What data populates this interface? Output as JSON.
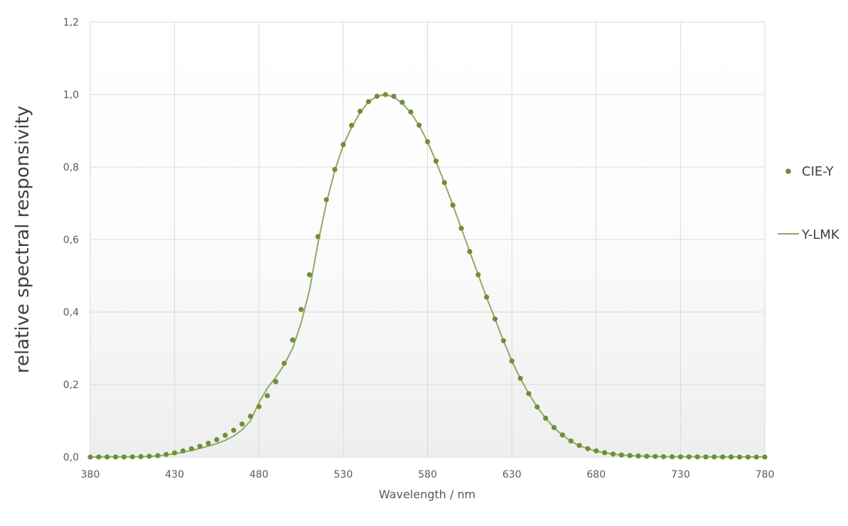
{
  "chart_data": {
    "type": "scatter",
    "xlabel": "Wavelength / nm",
    "ylabel": "relative spectral responsivity",
    "xlim": [
      380,
      780
    ],
    "ylim": [
      0,
      1.2
    ],
    "x_ticks": [
      "380",
      "430",
      "480",
      "530",
      "580",
      "630",
      "680",
      "730",
      "780"
    ],
    "y_ticks": [
      "0,0",
      "0,2",
      "0,4",
      "0,6",
      "0,8",
      "1,0",
      "1,2"
    ],
    "grid": true,
    "legend_position": "right",
    "series": [
      {
        "name": "CIE-Y",
        "style": "markers",
        "color": "#6f8f35",
        "x": [
          380,
          385,
          390,
          395,
          400,
          405,
          410,
          415,
          420,
          425,
          430,
          435,
          440,
          445,
          450,
          455,
          460,
          465,
          470,
          475,
          480,
          485,
          490,
          495,
          500,
          505,
          510,
          515,
          520,
          525,
          530,
          535,
          540,
          545,
          550,
          555,
          560,
          565,
          570,
          575,
          580,
          585,
          590,
          595,
          600,
          605,
          610,
          615,
          620,
          625,
          630,
          635,
          640,
          645,
          650,
          655,
          660,
          665,
          670,
          675,
          680,
          685,
          690,
          695,
          700,
          705,
          710,
          715,
          720,
          725,
          730,
          735,
          740,
          745,
          750,
          755,
          760,
          765,
          770,
          775,
          780
        ],
        "y": [
          0.0,
          0.0001,
          0.0001,
          0.0002,
          0.0004,
          0.0006,
          0.0012,
          0.0022,
          0.004,
          0.0073,
          0.0116,
          0.0168,
          0.023,
          0.0298,
          0.038,
          0.048,
          0.06,
          0.0739,
          0.091,
          0.1126,
          0.139,
          0.1693,
          0.208,
          0.2586,
          0.323,
          0.4073,
          0.503,
          0.6082,
          0.71,
          0.7932,
          0.862,
          0.9149,
          0.954,
          0.9803,
          0.995,
          1.0,
          0.995,
          0.9786,
          0.952,
          0.9154,
          0.87,
          0.8163,
          0.757,
          0.6949,
          0.631,
          0.5668,
          0.503,
          0.4412,
          0.381,
          0.321,
          0.265,
          0.217,
          0.175,
          0.1382,
          0.107,
          0.0816,
          0.061,
          0.0446,
          0.032,
          0.0232,
          0.017,
          0.0119,
          0.0082,
          0.0057,
          0.0041,
          0.0029,
          0.0021,
          0.0015,
          0.001,
          0.0007,
          0.0005,
          0.0004,
          0.0003,
          0.0002,
          0.0001,
          0.0001,
          0.0001,
          0.0,
          0.0,
          0.0,
          0.0
        ]
      },
      {
        "name": "Y-LMK",
        "style": "line",
        "color": "#8faa66",
        "x": [
          380,
          390,
          400,
          410,
          420,
          430,
          440,
          450,
          455,
          460,
          465,
          470,
          475,
          480,
          485,
          490,
          495,
          500,
          505,
          510,
          515,
          520,
          525,
          530,
          535,
          540,
          545,
          550,
          555,
          560,
          565,
          570,
          575,
          580,
          585,
          590,
          595,
          600,
          605,
          610,
          615,
          620,
          625,
          630,
          635,
          640,
          645,
          650,
          655,
          660,
          665,
          670,
          680,
          690,
          700,
          720,
          740,
          760,
          780
        ],
        "y": [
          0.0,
          0.0001,
          0.0003,
          0.0008,
          0.003,
          0.009,
          0.018,
          0.03,
          0.037,
          0.046,
          0.058,
          0.075,
          0.1,
          0.15,
          0.19,
          0.22,
          0.255,
          0.3,
          0.37,
          0.46,
          0.59,
          0.7,
          0.79,
          0.86,
          0.91,
          0.95,
          0.98,
          0.995,
          1.0,
          0.993,
          0.976,
          0.95,
          0.915,
          0.87,
          0.815,
          0.757,
          0.695,
          0.631,
          0.567,
          0.503,
          0.441,
          0.381,
          0.321,
          0.265,
          0.217,
          0.175,
          0.138,
          0.107,
          0.081,
          0.06,
          0.044,
          0.031,
          0.016,
          0.008,
          0.004,
          0.001,
          0.0003,
          0.0001,
          0.0
        ]
      }
    ]
  }
}
